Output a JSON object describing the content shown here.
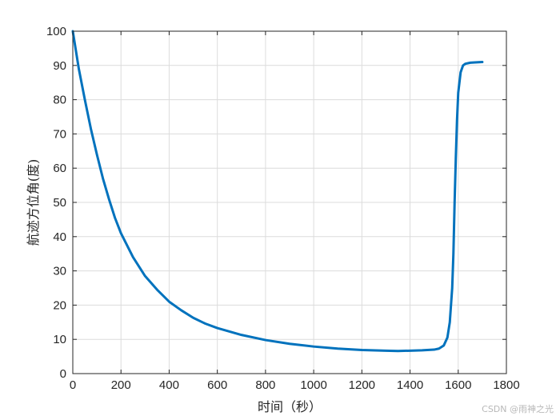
{
  "chart_data": {
    "type": "line",
    "title": "",
    "xlabel": "时间（秒）",
    "ylabel": "航迹方位角(度)",
    "xlim": [
      0,
      1800
    ],
    "ylim": [
      0,
      100
    ],
    "xticks": [
      0,
      200,
      400,
      600,
      800,
      1000,
      1200,
      1400,
      1600,
      1800
    ],
    "yticks": [
      0,
      10,
      20,
      30,
      40,
      50,
      60,
      70,
      80,
      90,
      100
    ],
    "grid": true,
    "series": [
      {
        "color": "#0072BD",
        "x": [
          0,
          25,
          50,
          75,
          100,
          125,
          150,
          175,
          200,
          250,
          300,
          350,
          400,
          450,
          500,
          550,
          600,
          700,
          800,
          900,
          1000,
          1100,
          1200,
          1300,
          1350,
          1400,
          1450,
          1500,
          1520,
          1540,
          1555,
          1565,
          1575,
          1580,
          1585,
          1590,
          1595,
          1600,
          1610,
          1620,
          1630,
          1650,
          1670,
          1700
        ],
        "y": [
          100,
          89,
          80,
          71.5,
          64,
          57,
          51,
          45.5,
          41,
          34,
          28.5,
          24.5,
          21,
          18.5,
          16.3,
          14.6,
          13.3,
          11.3,
          9.8,
          8.7,
          7.9,
          7.3,
          6.9,
          6.7,
          6.6,
          6.7,
          6.8,
          7.0,
          7.3,
          8.2,
          10.5,
          15,
          25,
          35,
          50,
          63,
          74,
          82,
          88,
          90,
          90.5,
          90.8,
          90.9,
          91
        ]
      }
    ]
  },
  "watermark": "CSDN @雨神之光"
}
